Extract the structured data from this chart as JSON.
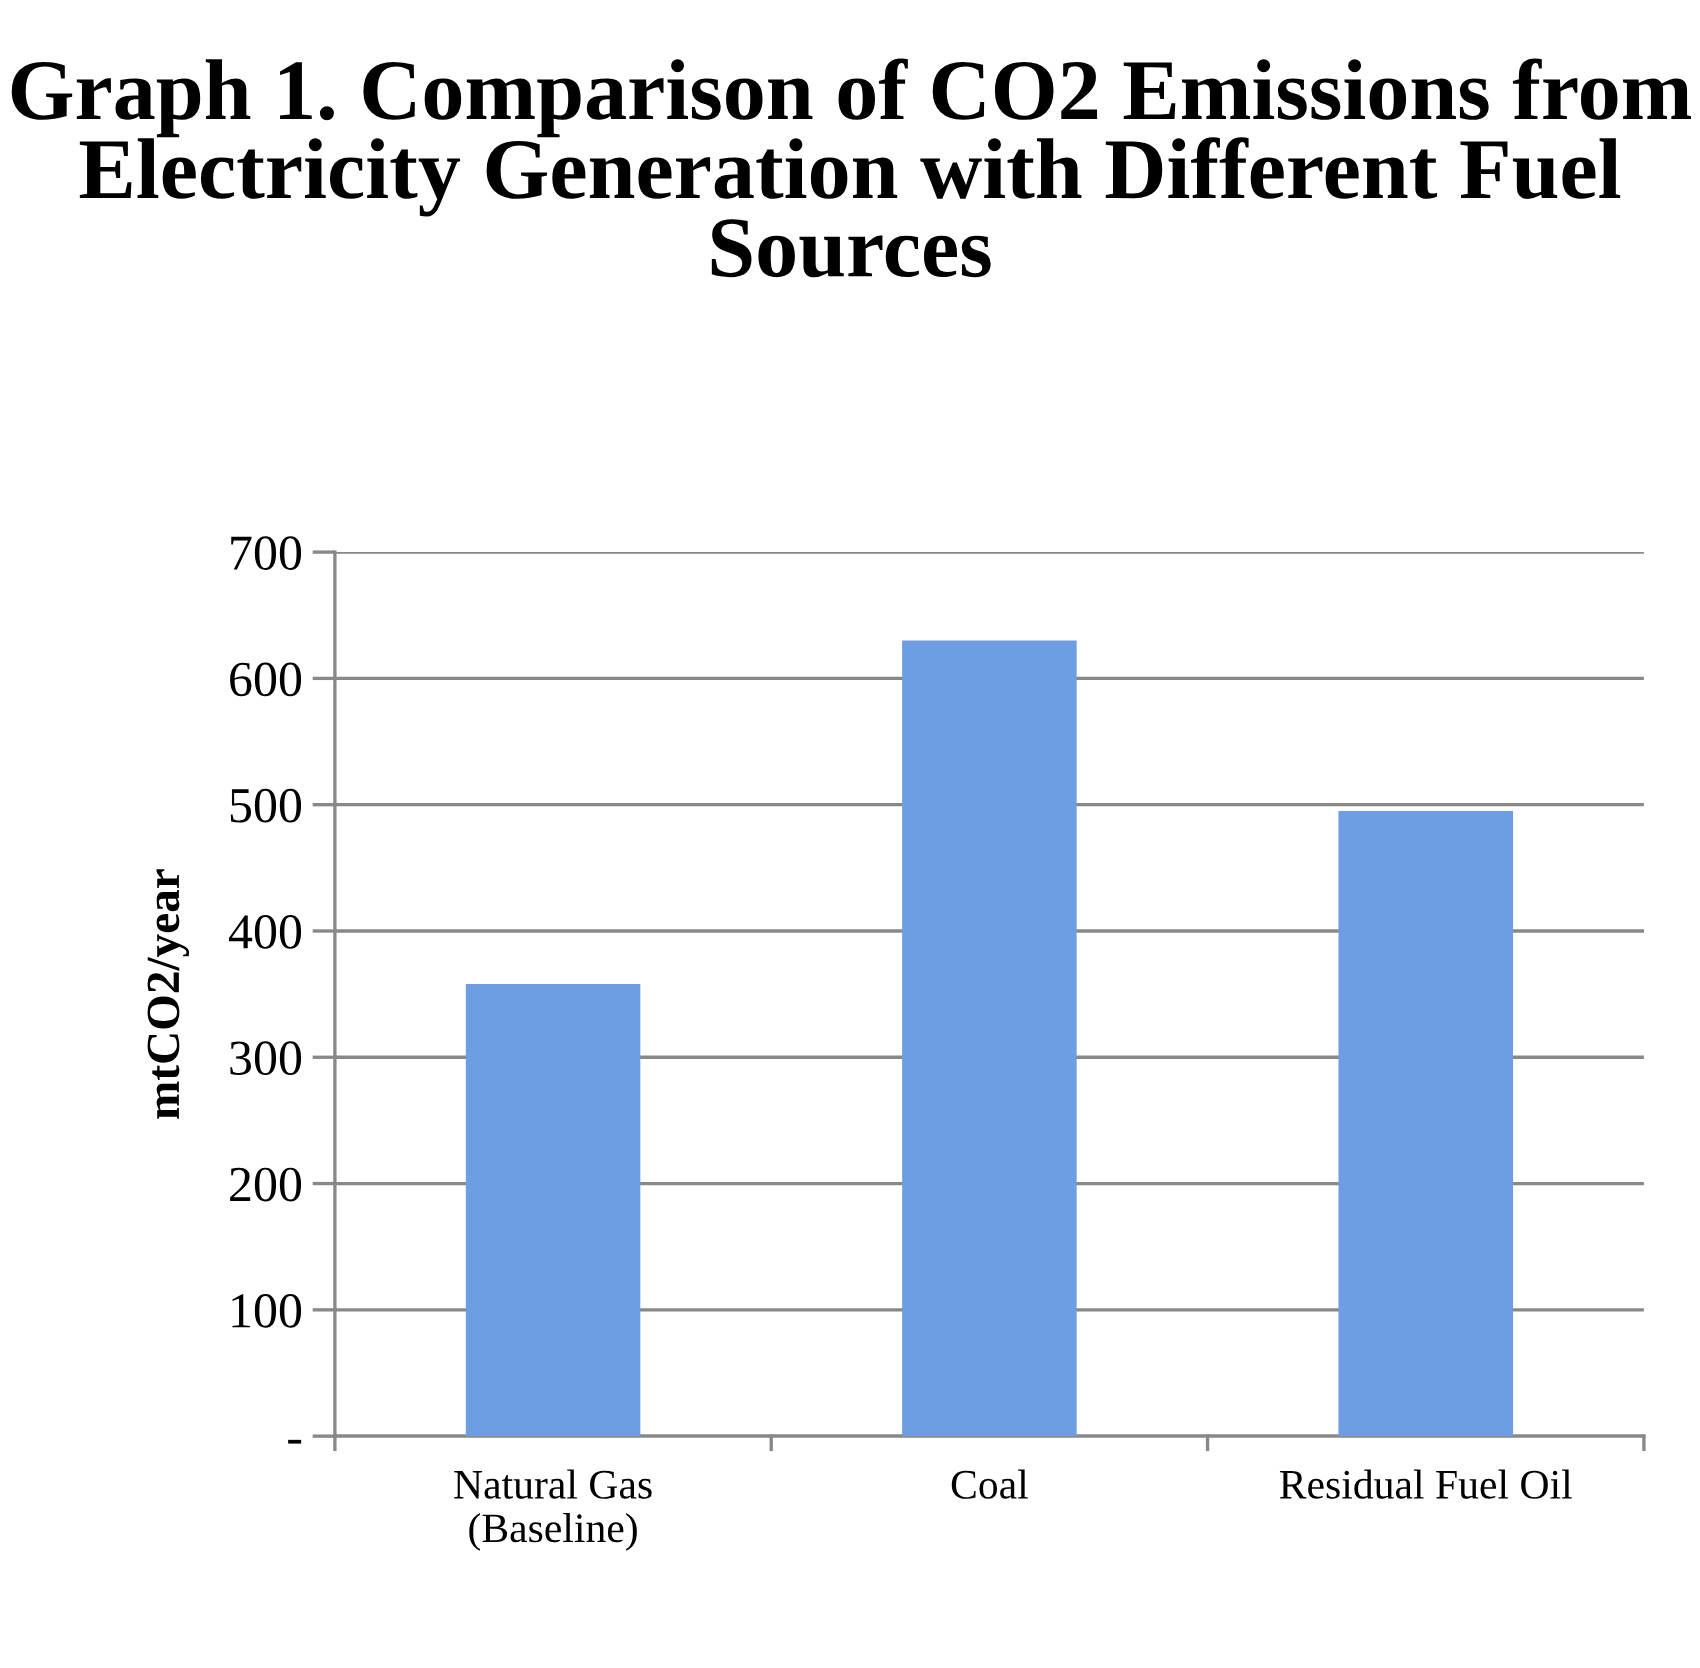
{
  "chart_data": {
    "type": "bar",
    "title": "Graph 1. Comparison of CO2 Emissions from Electricity Generation with Different Fuel Sources",
    "ylabel": "mtCO2/year",
    "categories": [
      "Natural Gas\n(Baseline)",
      "Coal",
      "Residual Fuel Oil"
    ],
    "values": [
      358,
      630,
      495
    ],
    "color": "#6d9de3",
    "ylim": [
      0,
      700
    ],
    "yticks": [
      {
        "value": 0,
        "label": "-"
      },
      100,
      200,
      300,
      400,
      500,
      600,
      700
    ],
    "grid": "y"
  }
}
